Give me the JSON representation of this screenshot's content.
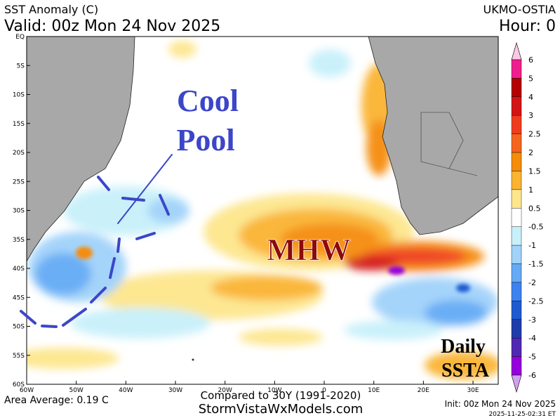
{
  "header": {
    "title": "SST Anomaly (C)",
    "valid": "Valid: 00z Mon 24 Nov 2025",
    "model": "UKMO-OSTIA",
    "hour": "Hour: 0"
  },
  "map": {
    "lat_labels": [
      "EQ",
      "5S",
      "10S",
      "15S",
      "20S",
      "25S",
      "30S",
      "35S",
      "40S",
      "45S",
      "50S",
      "55S",
      "60S"
    ],
    "lon_labels": [
      "60W",
      "50W",
      "40W",
      "30W",
      "20W",
      "10W",
      "0",
      "10E",
      "20E",
      "30E"
    ],
    "annotations": {
      "cool_pool": [
        "Cool",
        "Pool"
      ],
      "mhw": "MHW",
      "daily_ssta": [
        "Daily",
        "SSTA"
      ]
    }
  },
  "colorbar": {
    "labels": [
      "6",
      "5",
      "4",
      "3",
      "2.5",
      "2",
      "1.5",
      "1",
      "0.5",
      "-0.5",
      "-1",
      "-1.5",
      "-2",
      "-2.5",
      "-3",
      "-4",
      "-5",
      "-6"
    ],
    "colors": [
      "#f01e8c",
      "#b40000",
      "#d21414",
      "#f03c1e",
      "#f5641e",
      "#f58c0a",
      "#fab432",
      "#fde68c",
      "#ffffff",
      "#c8f0fa",
      "#a0d2fa",
      "#64aaf5",
      "#3c82f0",
      "#1e5ad2",
      "#1e3caa",
      "#5028b4",
      "#9600dc"
    ],
    "over_color": "#fac8e6",
    "under_color": "#d2a0f0"
  },
  "footer": {
    "compared": "Compared to 30Y (1991-2020)",
    "average": "Area Average: 0.19 C",
    "site": "StormVistaWxModels.com",
    "init": "Init: 00z Mon 24 Nov 2025",
    "stamp": "2025-11-25-02:31 ET"
  }
}
